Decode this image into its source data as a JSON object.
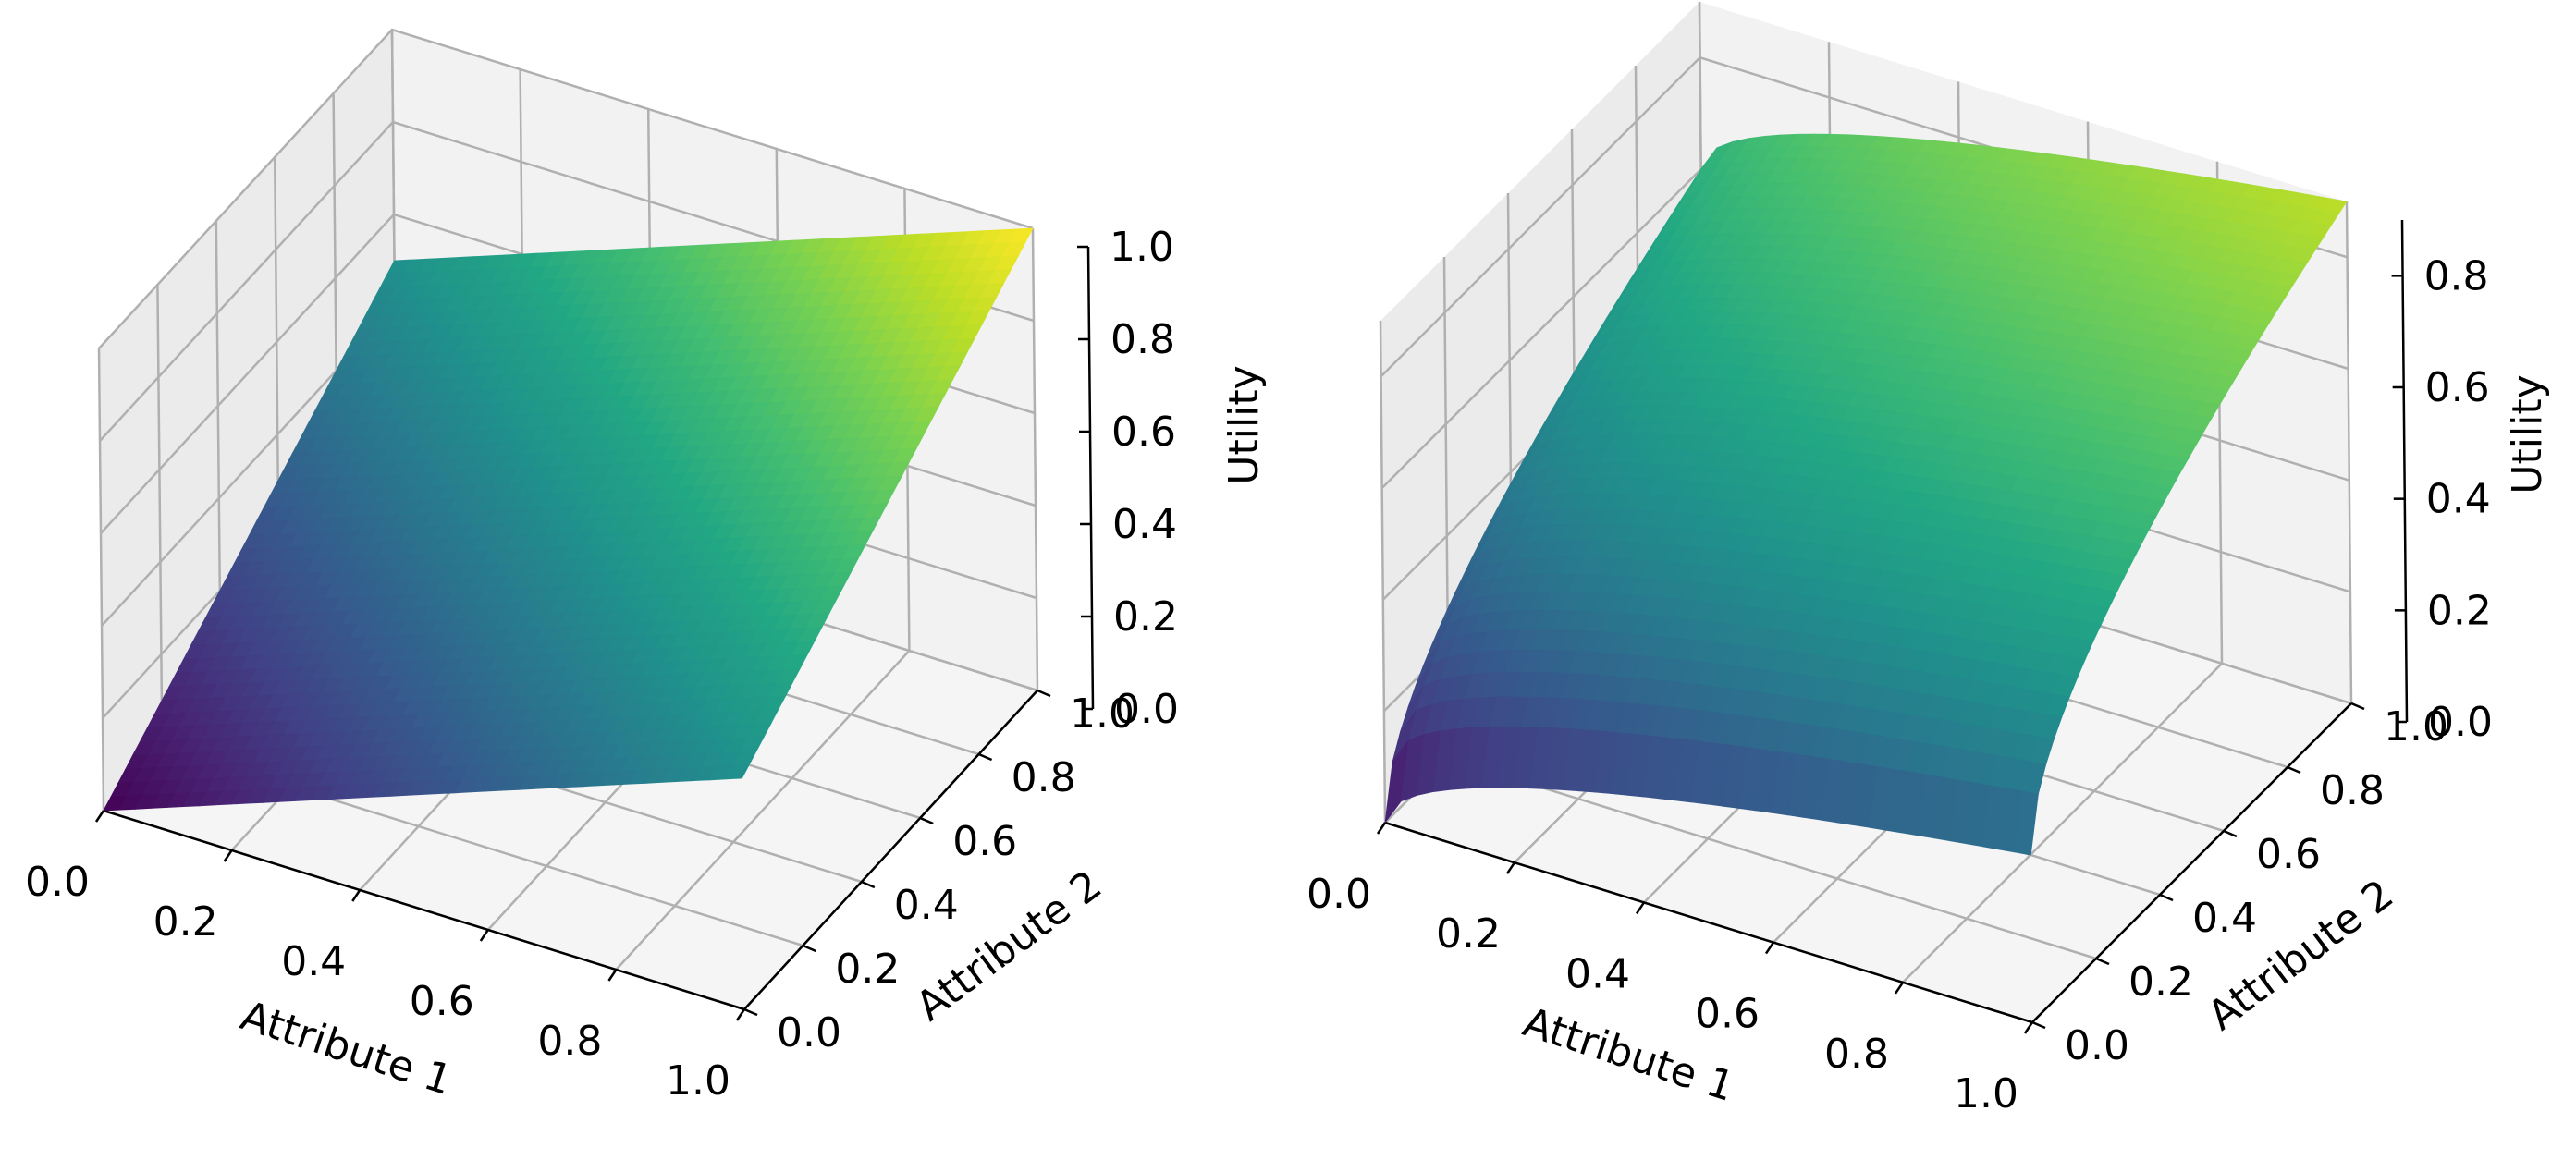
{
  "chart_data": [
    {
      "type": "surface3d",
      "title": "",
      "xlabel": "Attribute 1",
      "ylabel": "Attribute 2",
      "zlabel": "Utility",
      "xlim": [
        0,
        1
      ],
      "ylim": [
        0,
        1
      ],
      "zlim": [
        0,
        1
      ],
      "x_ticks": [
        "0.0",
        "0.2",
        "0.4",
        "0.6",
        "0.8",
        "1.0"
      ],
      "y_ticks": [
        "0.0",
        "0.2",
        "0.4",
        "0.6",
        "0.8",
        "1.0"
      ],
      "z_ticks": [
        "0.0",
        "0.2",
        "0.4",
        "0.6",
        "0.8",
        "1.0"
      ],
      "colormap": "viridis",
      "function": "linear",
      "description_values": {
        "corners": [
          {
            "x": 0,
            "y": 0,
            "z": 0.0
          },
          {
            "x": 1,
            "y": 0,
            "z": 0.5
          },
          {
            "x": 0,
            "y": 1,
            "z": 0.5
          },
          {
            "x": 1,
            "y": 1,
            "z": 1.0
          }
        ]
      },
      "grid": true
    },
    {
      "type": "surface3d",
      "title": "",
      "xlabel": "Attribute 1",
      "ylabel": "Attribute 2",
      "zlabel": "Utility",
      "xlim": [
        0,
        1
      ],
      "ylim": [
        0,
        1
      ],
      "zlim": [
        0,
        0.9
      ],
      "x_ticks": [
        "0.0",
        "0.2",
        "0.4",
        "0.6",
        "0.8",
        "1.0"
      ],
      "y_ticks": [
        "0.0",
        "0.2",
        "0.4",
        "0.6",
        "0.8",
        "1.0"
      ],
      "z_ticks": [
        "0.0",
        "0.2",
        "0.4",
        "0.6",
        "0.8"
      ],
      "colormap": "viridis",
      "function": "sqrt",
      "description_values": {
        "corners": [
          {
            "x": 0,
            "y": 0,
            "z": 0.0
          },
          {
            "x": 1,
            "y": 0,
            "z": 0.3
          },
          {
            "x": 0,
            "y": 1,
            "z": 0.6
          },
          {
            "x": 1,
            "y": 1,
            "z": 0.9
          }
        ]
      },
      "grid": true
    }
  ],
  "colors": {
    "pane_left": "#ebebeb",
    "pane_right": "#f2f2f2",
    "pane_floor": "#f5f5f5",
    "grid": "#b0b0b0",
    "axis": "#000000"
  }
}
